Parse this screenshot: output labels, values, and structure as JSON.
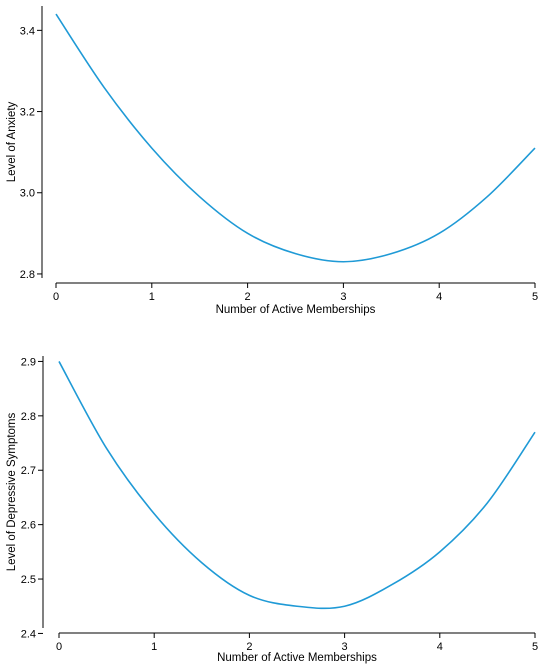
{
  "chart_data": [
    {
      "type": "line",
      "xlabel": "Number of Active Memberships",
      "ylabel": "Level of Anxiety",
      "xlim": [
        0,
        5
      ],
      "ylim": [
        2.79,
        3.46
      ],
      "x_ticks": [
        0,
        1,
        2,
        3,
        4,
        5
      ],
      "y_ticks": [
        2.8,
        3.0,
        3.2,
        3.4
      ],
      "y_tick_labels": [
        "2.8",
        "3.0",
        "3.2",
        "3.4"
      ],
      "grid": false,
      "color": "#1f9ad6",
      "series": [
        {
          "x": [
            0,
            0.5,
            1,
            1.5,
            2,
            2.5,
            3,
            3.5,
            4,
            4.5,
            5
          ],
          "y": [
            3.44,
            3.26,
            3.11,
            2.99,
            2.9,
            2.85,
            2.83,
            2.85,
            2.9,
            2.99,
            3.11
          ]
        }
      ]
    },
    {
      "type": "line",
      "xlabel": "Number of Active Memberships",
      "ylabel": "Level of Depressive Symptoms",
      "xlim": [
        0,
        5
      ],
      "ylim": [
        2.41,
        2.91
      ],
      "x_ticks": [
        0,
        1,
        2,
        3,
        4,
        5
      ],
      "y_ticks": [
        2.4,
        2.5,
        2.6,
        2.7,
        2.8,
        2.9
      ],
      "y_tick_labels": [
        "2.4",
        "2.5",
        "2.6",
        "2.7",
        "2.8",
        "2.9"
      ],
      "grid": false,
      "color": "#1f9ad6",
      "series": [
        {
          "x": [
            0,
            0.5,
            1,
            1.5,
            2,
            2.5,
            3,
            3.5,
            4,
            4.5,
            5
          ],
          "y": [
            2.9,
            2.74,
            2.62,
            2.53,
            2.47,
            2.45,
            2.45,
            2.49,
            2.55,
            2.64,
            2.77
          ]
        }
      ]
    }
  ]
}
